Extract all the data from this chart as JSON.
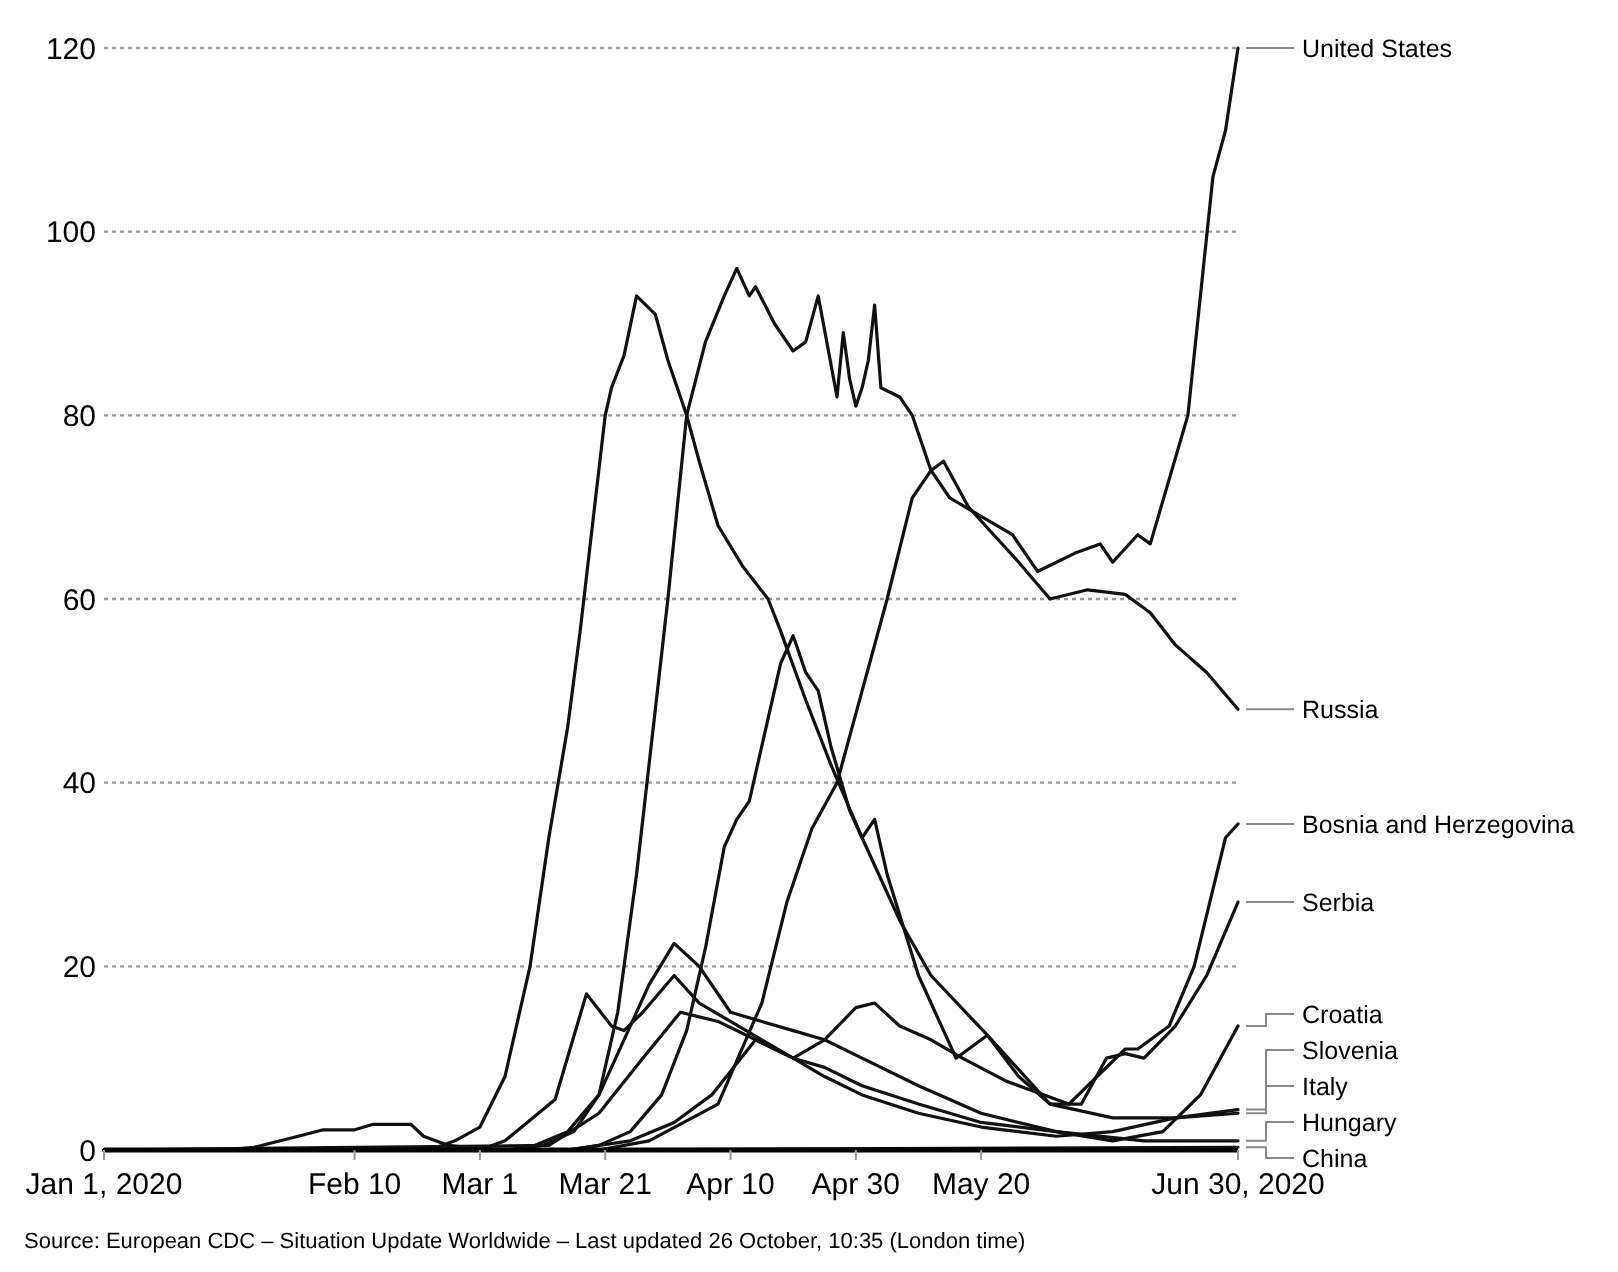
{
  "chart_data": {
    "type": "line",
    "xlim": [
      "2020-01-01",
      "2020-06-30"
    ],
    "ylim": [
      0,
      120
    ],
    "yticks": [
      0,
      20,
      40,
      60,
      80,
      100,
      120
    ],
    "xticks": [
      {
        "value": "2020-01-01",
        "label": "Jan 1, 2020"
      },
      {
        "value": "2020-02-10",
        "label": "Feb 10"
      },
      {
        "value": "2020-03-01",
        "label": "Mar 1"
      },
      {
        "value": "2020-03-21",
        "label": "Mar 21"
      },
      {
        "value": "2020-04-10",
        "label": "Apr 10"
      },
      {
        "value": "2020-04-30",
        "label": "Apr 30"
      },
      {
        "value": "2020-05-20",
        "label": "May 20"
      },
      {
        "value": "2020-06-30",
        "label": "Jun 30, 2020"
      }
    ],
    "grid": "y",
    "line_style": "solid",
    "annotations": [
      "Source: European CDC – Situation Update Worldwide – Last updated 26 October, 10:35 (London time)"
    ],
    "series": [
      {
        "name": "United States",
        "color": "#111111",
        "x": [
          "2020-01-01",
          "2020-03-05",
          "2020-03-11",
          "2020-03-16",
          "2020-03-20",
          "2020-03-23",
          "2020-03-26",
          "2020-03-29",
          "2020-03-31",
          "2020-04-03",
          "2020-04-06",
          "2020-04-09",
          "2020-04-11",
          "2020-04-13",
          "2020-04-14",
          "2020-04-17",
          "2020-04-20",
          "2020-04-22",
          "2020-04-24",
          "2020-04-27",
          "2020-04-28",
          "2020-04-29",
          "2020-04-30",
          "2020-05-01",
          "2020-05-02",
          "2020-05-03",
          "2020-05-04",
          "2020-05-07",
          "2020-05-09",
          "2020-05-12",
          "2020-05-15",
          "2020-05-20",
          "2020-05-25",
          "2020-05-29",
          "2020-06-04",
          "2020-06-08",
          "2020-06-10",
          "2020-06-14",
          "2020-06-16",
          "2020-06-19",
          "2020-06-22",
          "2020-06-24",
          "2020-06-26",
          "2020-06-28",
          "2020-06-30"
        ],
        "values": [
          0,
          0,
          0.5,
          2,
          6,
          15,
          30,
          48,
          60,
          80,
          88,
          93,
          96,
          93,
          94,
          90,
          87,
          88,
          93,
          82,
          89,
          84,
          81,
          83,
          86,
          92,
          83,
          82,
          80,
          74,
          71,
          69,
          67,
          63,
          65,
          66,
          64,
          67,
          66,
          73,
          80,
          93,
          106,
          111,
          120
        ]
      },
      {
        "name": "Russia",
        "color": "#111111",
        "x": [
          "2020-01-01",
          "2020-03-20",
          "2020-03-28",
          "2020-04-08",
          "2020-04-15",
          "2020-04-19",
          "2020-04-23",
          "2020-04-27",
          "2020-05-01",
          "2020-05-05",
          "2020-05-09",
          "2020-05-12",
          "2020-05-14",
          "2020-05-18",
          "2020-05-22",
          "2020-05-26",
          "2020-05-31",
          "2020-06-06",
          "2020-06-12",
          "2020-06-16",
          "2020-06-20",
          "2020-06-25",
          "2020-06-30"
        ],
        "values": [
          0,
          0,
          1,
          5,
          16,
          27,
          35,
          40,
          50,
          60,
          71,
          74,
          75,
          70,
          67,
          64,
          60,
          61,
          60.5,
          58.5,
          55,
          52,
          48
        ]
      },
      {
        "name": "Bosnia and Herzegovina",
        "color": "#111111",
        "x": [
          "2020-01-01",
          "2020-03-15",
          "2020-03-25",
          "2020-04-01",
          "2020-04-07",
          "2020-04-14",
          "2020-04-20",
          "2020-04-25",
          "2020-04-30",
          "2020-05-03",
          "2020-05-07",
          "2020-05-12",
          "2020-05-17",
          "2020-05-24",
          "2020-06-03",
          "2020-06-12",
          "2020-06-14",
          "2020-06-19",
          "2020-06-23",
          "2020-06-28",
          "2020-06-30"
        ],
        "values": [
          0,
          0,
          1,
          3,
          6,
          12,
          10,
          12,
          15.5,
          16,
          13.5,
          12,
          10,
          7.5,
          5,
          11,
          11,
          13.5,
          20,
          34,
          35.5
        ]
      },
      {
        "name": "Serbia",
        "color": "#111111",
        "x": [
          "2020-01-01",
          "2020-03-15",
          "2020-03-20",
          "2020-03-25",
          "2020-03-30",
          "2020-04-03",
          "2020-04-06",
          "2020-04-09",
          "2020-04-11",
          "2020-04-13",
          "2020-04-16",
          "2020-04-18",
          "2020-04-20",
          "2020-04-22",
          "2020-04-24",
          "2020-04-26",
          "2020-04-29",
          "2020-05-01",
          "2020-05-03",
          "2020-05-05",
          "2020-05-10",
          "2020-05-16",
          "2020-05-21",
          "2020-05-26",
          "2020-05-31",
          "2020-06-05",
          "2020-06-09",
          "2020-06-12",
          "2020-06-15",
          "2020-06-20",
          "2020-06-25",
          "2020-06-30"
        ],
        "values": [
          0,
          0,
          0.5,
          2,
          6,
          13,
          22,
          33,
          36,
          38,
          47,
          53,
          56,
          52,
          50,
          44,
          37,
          34,
          36,
          30,
          19,
          10,
          12.5,
          8,
          5,
          5,
          10,
          10.5,
          10,
          13.5,
          19,
          27
        ]
      },
      {
        "name": "Croatia",
        "color": "#111111",
        "x": [
          "2020-01-01",
          "2020-03-08",
          "2020-03-15",
          "2020-03-20",
          "2020-03-24",
          "2020-03-28",
          "2020-04-01",
          "2020-04-05",
          "2020-04-10",
          "2020-04-15",
          "2020-04-20",
          "2020-04-25",
          "2020-05-01",
          "2020-05-10",
          "2020-05-20",
          "2020-06-01",
          "2020-06-10",
          "2020-06-18",
          "2020-06-24",
          "2020-06-30"
        ],
        "values": [
          0,
          0,
          2,
          6,
          12,
          18,
          22.5,
          20,
          15,
          14,
          13,
          12,
          10,
          7,
          4,
          2,
          1,
          2,
          6,
          13.5
        ]
      },
      {
        "name": "Slovenia",
        "color": "#111111",
        "x": [
          "2020-01-01",
          "2020-03-01",
          "2020-03-05",
          "2020-03-13",
          "2020-03-18",
          "2020-03-22",
          "2020-03-24",
          "2020-03-27",
          "2020-04-01",
          "2020-04-05",
          "2020-04-10",
          "2020-04-15",
          "2020-04-20",
          "2020-04-25",
          "2020-05-01",
          "2020-05-10",
          "2020-05-20",
          "2020-06-01",
          "2020-06-10",
          "2020-06-20",
          "2020-06-30"
        ],
        "values": [
          0,
          0,
          1,
          5.5,
          17,
          13.5,
          13,
          15,
          19,
          16,
          14,
          12,
          10,
          8,
          6,
          4,
          2.5,
          1.5,
          2,
          3.5,
          4.4
        ]
      },
      {
        "name": "Italy",
        "color": "#111111",
        "x": [
          "2020-01-01",
          "2020-02-22",
          "2020-02-26",
          "2020-03-01",
          "2020-03-05",
          "2020-03-09",
          "2020-03-12",
          "2020-03-15",
          "2020-03-17",
          "2020-03-21",
          "2020-03-22",
          "2020-03-24",
          "2020-03-26",
          "2020-03-29",
          "2020-03-31",
          "2020-04-03",
          "2020-04-05",
          "2020-04-08",
          "2020-04-12",
          "2020-04-16",
          "2020-04-18",
          "2020-04-22",
          "2020-04-26",
          "2020-05-01",
          "2020-05-07",
          "2020-05-12",
          "2020-05-21",
          "2020-05-31",
          "2020-06-10",
          "2020-06-20",
          "2020-06-30"
        ],
        "values": [
          0,
          0,
          1,
          2.5,
          8,
          20,
          34,
          46,
          56.5,
          80,
          83,
          86.5,
          93,
          91,
          86,
          80,
          75,
          68,
          63.5,
          60,
          56.5,
          49,
          42,
          34,
          25,
          19,
          12.5,
          5,
          3.5,
          3.5,
          4
        ]
      },
      {
        "name": "Hungary",
        "color": "#111111",
        "x": [
          "2020-01-01",
          "2020-03-12",
          "2020-03-20",
          "2020-03-27",
          "2020-04-02",
          "2020-04-08",
          "2020-04-14",
          "2020-04-20",
          "2020-04-25",
          "2020-05-01",
          "2020-05-10",
          "2020-05-20",
          "2020-06-01",
          "2020-06-15",
          "2020-06-30"
        ],
        "values": [
          0,
          0.5,
          4,
          10,
          15,
          14,
          12,
          10,
          9,
          7,
          5,
          3,
          2,
          1,
          1
        ]
      },
      {
        "name": "China",
        "color": "#111111",
        "x": [
          "2020-01-01",
          "2020-01-20",
          "2020-01-25",
          "2020-02-01",
          "2020-02-05",
          "2020-02-10",
          "2020-02-13",
          "2020-02-19",
          "2020-02-21",
          "2020-02-25",
          "2020-03-01",
          "2020-03-10",
          "2020-06-30"
        ],
        "values": [
          0,
          0,
          0.3,
          1.5,
          2.2,
          2.2,
          2.8,
          2.8,
          1.5,
          0.5,
          0.1,
          0,
          0.3
        ]
      }
    ]
  }
}
